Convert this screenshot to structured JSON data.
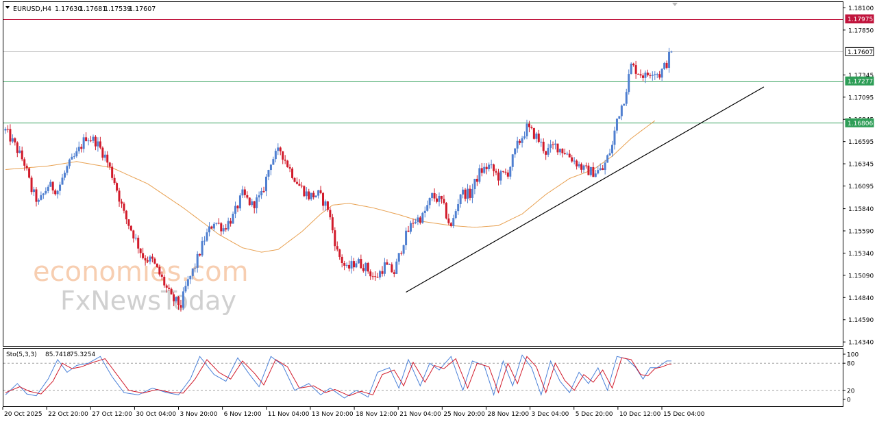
{
  "header": {
    "symbol": "EURUSD,H4",
    "open": "1.17630",
    "high": "1.17681",
    "low": "1.17539",
    "close": "1.17607"
  },
  "watermark": {
    "line1": "economies.com",
    "line2": "FxNewsToday"
  },
  "colors": {
    "bull": "#4f7fd0",
    "bear": "#d11a2a",
    "ma": "#e8a050",
    "resistance": "#c0143c",
    "support": "#2e9e57",
    "trendline": "#000000",
    "stoch_main": "#4a80d8",
    "stoch_signal": "#d11a2a"
  },
  "chart_data": [
    {
      "type": "candlestick",
      "symbol": "EURUSD",
      "timeframe": "H4",
      "y_ticks": [
        "1.18100",
        "1.17850",
        "1.17345",
        "1.17095",
        "1.16845",
        "1.16595",
        "1.16345",
        "1.16095",
        "1.15840",
        "1.15590",
        "1.15340",
        "1.15090",
        "1.14840",
        "1.14590",
        "1.14340"
      ],
      "x_ticks": [
        "20 Oct 2025",
        "22 Oct 20:00",
        "27 Oct 12:00",
        "30 Oct 04:00",
        "3 Nov 20:00",
        "6 Nov 12:00",
        "11 Nov 04:00",
        "13 Nov 20:00",
        "18 Nov 12:00",
        "21 Nov 04:00",
        "25 Nov 20:00",
        "28 Nov 12:00",
        "3 Dec 04:00",
        "5 Dec 20:00",
        "10 Dec 12:00",
        "15 Dec 04:00"
      ],
      "ylim": [
        1.14295,
        1.18165
      ],
      "price_labels": [
        {
          "value": 1.17975,
          "text": "1.17975",
          "kind": "resistance"
        },
        {
          "value": 1.17607,
          "text": "1.17607",
          "kind": "current"
        },
        {
          "value": 1.17277,
          "text": "1.17277",
          "kind": "support"
        },
        {
          "value": 1.16806,
          "text": "1.16806",
          "kind": "support"
        }
      ],
      "price_path": [
        [
          0,
          1.1672
        ],
        [
          4,
          1.1655
        ],
        [
          8,
          1.1635
        ],
        [
          11,
          1.1605
        ],
        [
          14,
          1.159
        ],
        [
          18,
          1.161
        ],
        [
          22,
          1.1605
        ],
        [
          26,
          1.163
        ],
        [
          30,
          1.1645
        ],
        [
          34,
          1.1665
        ],
        [
          38,
          1.166
        ],
        [
          42,
          1.1643
        ],
        [
          46,
          1.1615
        ],
        [
          50,
          1.1578
        ],
        [
          54,
          1.1555
        ],
        [
          58,
          1.153
        ],
        [
          62,
          1.1525
        ],
        [
          66,
          1.1505
        ],
        [
          70,
          1.1483
        ],
        [
          74,
          1.1475
        ],
        [
          76,
          1.1495
        ],
        [
          80,
          1.152
        ],
        [
          84,
          1.155
        ],
        [
          88,
          1.157
        ],
        [
          92,
          1.1562
        ],
        [
          96,
          1.1575
        ],
        [
          100,
          1.16
        ],
        [
          104,
          1.1588
        ],
        [
          108,
          1.1598
        ],
        [
          112,
          1.1638
        ],
        [
          116,
          1.165
        ],
        [
          120,
          1.1628
        ],
        [
          124,
          1.161
        ],
        [
          128,
          1.1598
        ],
        [
          132,
          1.16
        ],
        [
          136,
          1.1585
        ],
        [
          140,
          1.1535
        ],
        [
          144,
          1.1515
        ],
        [
          148,
          1.1525
        ],
        [
          152,
          1.1518
        ],
        [
          156,
          1.1505
        ],
        [
          160,
          1.152
        ],
        [
          164,
          1.1512
        ],
        [
          168,
          1.1548
        ],
        [
          172,
          1.157
        ],
        [
          176,
          1.1575
        ],
        [
          180,
          1.1598
        ],
        [
          184,
          1.1592
        ],
        [
          188,
          1.1562
        ],
        [
          192,
          1.1602
        ],
        [
          196,
          1.16
        ],
        [
          200,
          1.1625
        ],
        [
          204,
          1.1632
        ],
        [
          208,
          1.162
        ],
        [
          212,
          1.1625
        ],
        [
          216,
          1.1655
        ],
        [
          220,
          1.1675
        ],
        [
          224,
          1.1665
        ],
        [
          228,
          1.1648
        ],
        [
          232,
          1.1655
        ],
        [
          236,
          1.1648
        ],
        [
          240,
          1.1638
        ],
        [
          244,
          1.1628
        ],
        [
          248,
          1.1625
        ],
        [
          252,
          1.1628
        ],
        [
          256,
          1.1655
        ],
        [
          258,
          1.1685
        ],
        [
          261,
          1.1708
        ],
        [
          264,
          1.1745
        ],
        [
          267,
          1.1738
        ],
        [
          270,
          1.1733
        ],
        [
          273,
          1.174
        ],
        [
          276,
          1.1735
        ],
        [
          279,
          1.1748
        ],
        [
          281,
          1.1762
        ]
      ],
      "n_candles": 282,
      "ma_path": [
        [
          0,
          1.1628
        ],
        [
          18,
          1.1632
        ],
        [
          30,
          1.1637
        ],
        [
          45,
          1.163
        ],
        [
          60,
          1.1612
        ],
        [
          75,
          1.1585
        ],
        [
          90,
          1.1555
        ],
        [
          100,
          1.154
        ],
        [
          108,
          1.1535
        ],
        [
          115,
          1.1538
        ],
        [
          125,
          1.1558
        ],
        [
          133,
          1.1578
        ],
        [
          138,
          1.1588
        ],
        [
          145,
          1.159
        ],
        [
          155,
          1.1585
        ],
        [
          165,
          1.1578
        ],
        [
          175,
          1.157
        ],
        [
          188,
          1.1565
        ],
        [
          198,
          1.1563
        ],
        [
          208,
          1.1565
        ],
        [
          218,
          1.1578
        ],
        [
          228,
          1.16
        ],
        [
          238,
          1.1618
        ],
        [
          248,
          1.1628
        ],
        [
          256,
          1.1643
        ],
        [
          264,
          1.1663
        ],
        [
          270,
          1.1675
        ],
        [
          274,
          1.1683
        ]
      ],
      "ma_end_index": 274,
      "trendline": {
        "start": [
          169,
          1.149
        ],
        "end": [
          320,
          1.1721
        ]
      }
    },
    {
      "type": "line",
      "indicator": "Stochastic",
      "label": "Sto(5,3,3)",
      "main_value": "85.7418",
      "signal_value": "75.3254",
      "ylim": [
        0,
        100
      ],
      "levels": [
        80,
        20
      ],
      "y_ticks": [
        100,
        80,
        20,
        0
      ],
      "main_path": [
        [
          0,
          10
        ],
        [
          5,
          35
        ],
        [
          9,
          12
        ],
        [
          13,
          8
        ],
        [
          18,
          45
        ],
        [
          22,
          88
        ],
        [
          26,
          60
        ],
        [
          30,
          75
        ],
        [
          35,
          80
        ],
        [
          40,
          95
        ],
        [
          45,
          50
        ],
        [
          50,
          15
        ],
        [
          56,
          10
        ],
        [
          62,
          25
        ],
        [
          68,
          15
        ],
        [
          73,
          10
        ],
        [
          78,
          45
        ],
        [
          82,
          95
        ],
        [
          88,
          55
        ],
        [
          93,
          40
        ],
        [
          98,
          92
        ],
        [
          103,
          55
        ],
        [
          107,
          28
        ],
        [
          112,
          95
        ],
        [
          117,
          75
        ],
        [
          122,
          20
        ],
        [
          128,
          35
        ],
        [
          133,
          10
        ],
        [
          137,
          25
        ],
        [
          143,
          3
        ],
        [
          148,
          20
        ],
        [
          153,
          5
        ],
        [
          157,
          60
        ],
        [
          162,
          70
        ],
        [
          166,
          25
        ],
        [
          170,
          88
        ],
        [
          175,
          30
        ],
        [
          179,
          80
        ],
        [
          183,
          65
        ],
        [
          188,
          95
        ],
        [
          193,
          20
        ],
        [
          197,
          85
        ],
        [
          202,
          75
        ],
        [
          206,
          10
        ],
        [
          210,
          85
        ],
        [
          214,
          30
        ],
        [
          218,
          98
        ],
        [
          222,
          70
        ],
        [
          226,
          10
        ],
        [
          230,
          85
        ],
        [
          234,
          40
        ],
        [
          238,
          15
        ],
        [
          242,
          60
        ],
        [
          246,
          35
        ],
        [
          250,
          70
        ],
        [
          254,
          20
        ],
        [
          258,
          95
        ],
        [
          262,
          90
        ],
        [
          266,
          70
        ],
        [
          269,
          45
        ],
        [
          272,
          70
        ],
        [
          275,
          70
        ],
        [
          279,
          85
        ]
      ],
      "signal_path": [
        [
          0,
          15
        ],
        [
          6,
          28
        ],
        [
          10,
          18
        ],
        [
          15,
          12
        ],
        [
          20,
          40
        ],
        [
          24,
          80
        ],
        [
          28,
          68
        ],
        [
          32,
          72
        ],
        [
          37,
          82
        ],
        [
          42,
          90
        ],
        [
          47,
          55
        ],
        [
          52,
          20
        ],
        [
          58,
          14
        ],
        [
          64,
          22
        ],
        [
          70,
          15
        ],
        [
          75,
          14
        ],
        [
          80,
          45
        ],
        [
          85,
          88
        ],
        [
          90,
          60
        ],
        [
          95,
          45
        ],
        [
          100,
          85
        ],
        [
          105,
          58
        ],
        [
          109,
          32
        ],
        [
          114,
          88
        ],
        [
          119,
          72
        ],
        [
          124,
          25
        ],
        [
          130,
          30
        ],
        [
          135,
          15
        ],
        [
          139,
          22
        ],
        [
          145,
          8
        ],
        [
          150,
          18
        ],
        [
          155,
          10
        ],
        [
          159,
          55
        ],
        [
          164,
          65
        ],
        [
          168,
          30
        ],
        [
          172,
          82
        ],
        [
          177,
          38
        ],
        [
          181,
          75
        ],
        [
          185,
          68
        ],
        [
          190,
          90
        ],
        [
          195,
          25
        ],
        [
          199,
          80
        ],
        [
          204,
          72
        ],
        [
          208,
          15
        ],
        [
          212,
          80
        ],
        [
          216,
          35
        ],
        [
          220,
          95
        ],
        [
          224,
          72
        ],
        [
          228,
          15
        ],
        [
          232,
          80
        ],
        [
          236,
          42
        ],
        [
          240,
          20
        ],
        [
          244,
          55
        ],
        [
          248,
          38
        ],
        [
          252,
          65
        ],
        [
          256,
          25
        ],
        [
          260,
          92
        ],
        [
          264,
          88
        ],
        [
          268,
          55
        ],
        [
          271,
          52
        ],
        [
          274,
          68
        ],
        [
          277,
          72
        ],
        [
          280,
          78
        ]
      ]
    }
  ]
}
